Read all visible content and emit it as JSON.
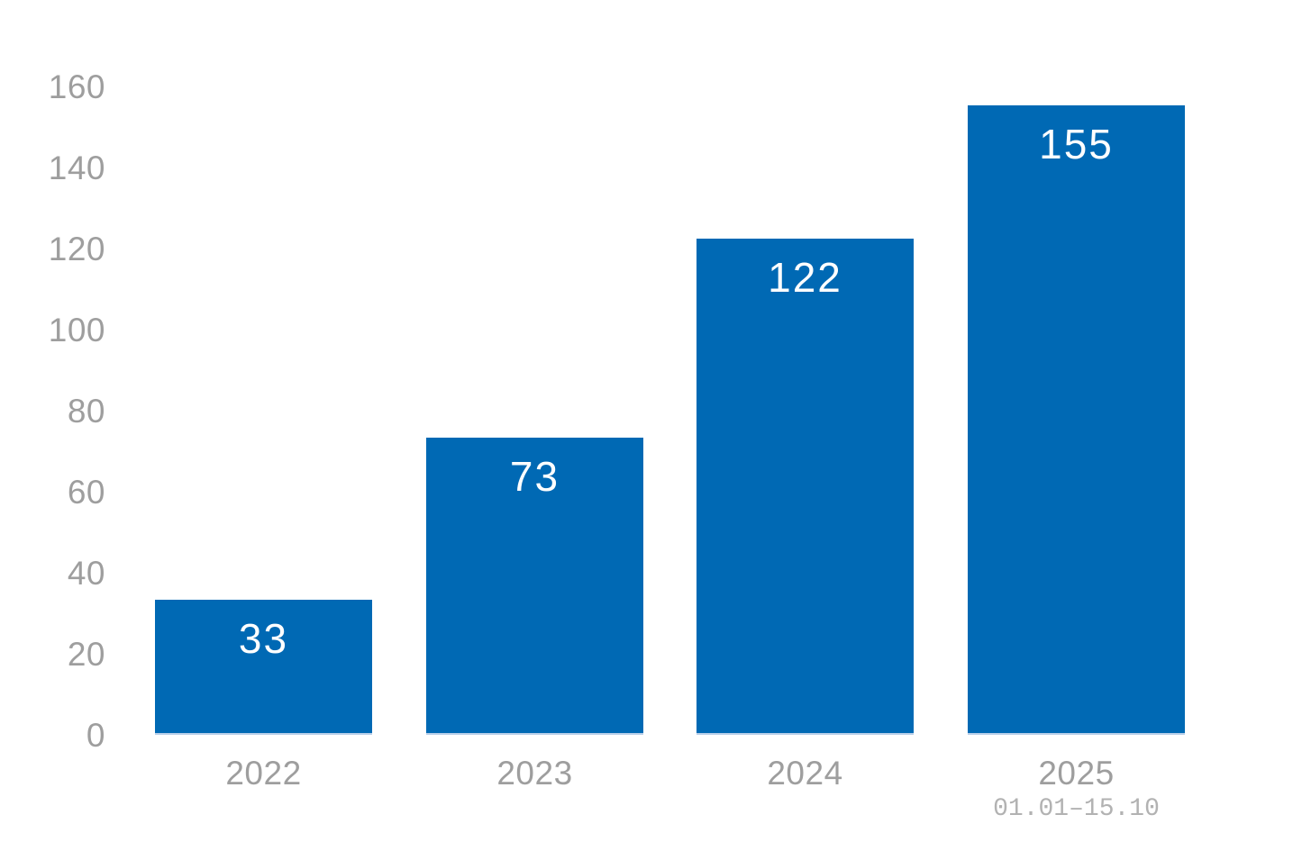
{
  "chart_data": {
    "type": "bar",
    "title": "",
    "categories": [
      "2022",
      "2023",
      "2024",
      "2025"
    ],
    "category_sublabels": [
      "",
      "",
      "",
      "01.01–15.10"
    ],
    "values": [
      33,
      73,
      122,
      155
    ],
    "ylim": [
      0,
      160
    ],
    "yticks": [
      0,
      20,
      40,
      60,
      80,
      100,
      120,
      140,
      160
    ],
    "grid": false,
    "legend": "none",
    "axes_lines": "none",
    "bar_color": "#0069b4",
    "bar_bottom_edge_color": "#b9cfe9",
    "value_label_color": "#ffffff",
    "tick_label_color": "#9e9e9e",
    "sublabel_color": "#b2b2b2",
    "background_color": "#ffffff"
  }
}
